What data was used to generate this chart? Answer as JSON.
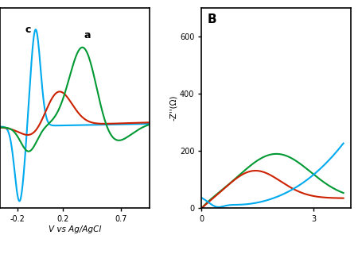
{
  "panel_A": {
    "xlabel": "V vs Ag/AgCl",
    "xlim": [
      -0.35,
      0.95
    ],
    "ylim": [
      -1.2,
      1.6
    ],
    "xticks": [
      -0.2,
      0.2,
      0.7
    ],
    "xtick_labels": [
      "-0.2",
      "0.2",
      "0.7"
    ]
  },
  "panel_B": {
    "label": "B",
    "ylabel": "-Z''(Ω)",
    "xlim": [
      0,
      4.0
    ],
    "ylim": [
      0,
      700
    ],
    "xticks": [
      0,
      3
    ],
    "xtick_labels": [
      "0",
      "3"
    ],
    "yticks": [
      0,
      200,
      400,
      600
    ],
    "ytick_labels": [
      "0",
      "200",
      "400",
      "600"
    ]
  },
  "colors": {
    "blue": "#00aaee",
    "red": "#cc2200",
    "green": "#009933"
  },
  "background_color": "#ffffff"
}
